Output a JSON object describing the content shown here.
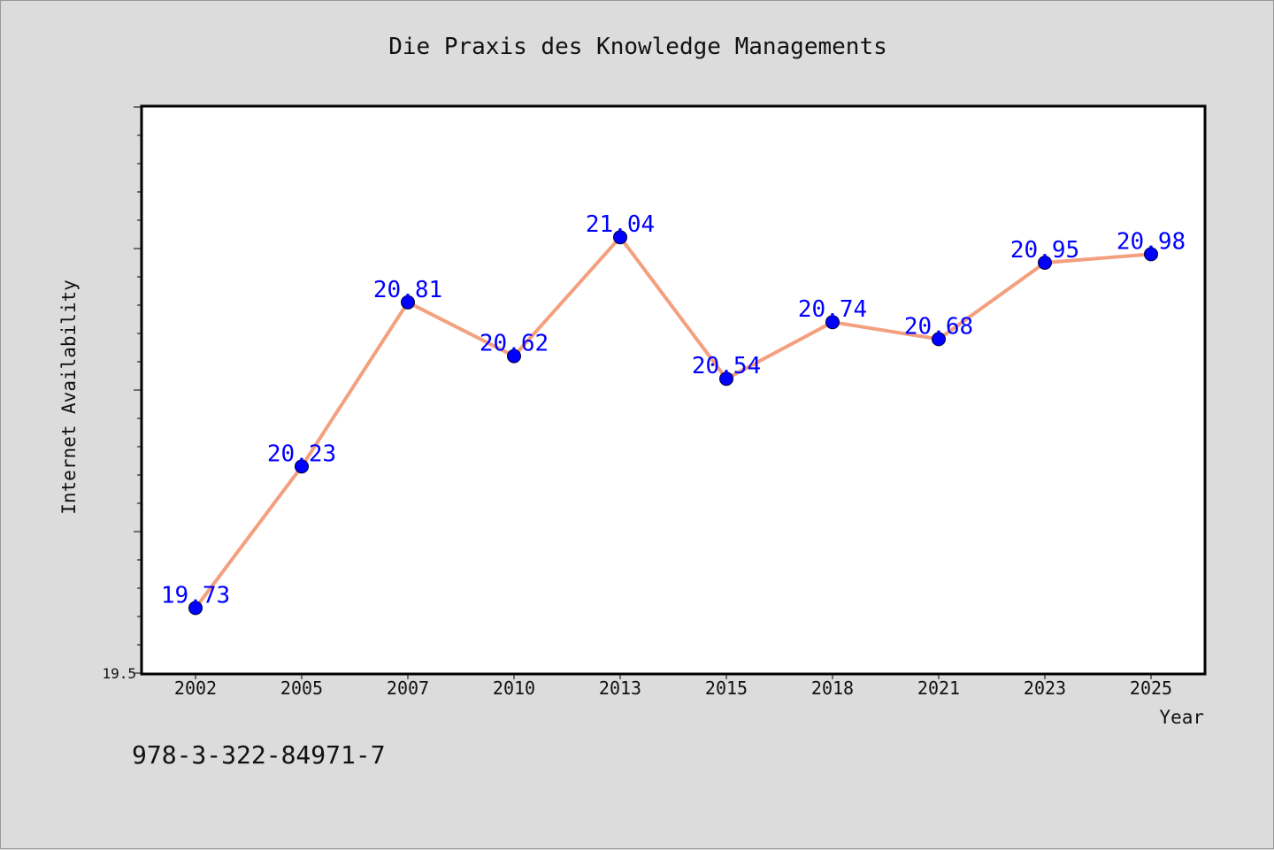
{
  "chart_data": {
    "type": "line",
    "title": "Die Praxis des Knowledge Managements",
    "xlabel": "Year",
    "ylabel": "Internet Availability",
    "categories": [
      "2002",
      "2005",
      "2007",
      "2010",
      "2013",
      "2015",
      "2018",
      "2021",
      "2023",
      "2025"
    ],
    "series": [
      {
        "values": [
          19.73,
          20.23,
          20.81,
          20.62,
          21.04,
          20.54,
          20.74,
          20.68,
          20.95,
          20.98
        ]
      }
    ],
    "data_labels": [
      "19.73",
      "20.23",
      "20.81",
      "20.62",
      "21.04",
      "20.54",
      "20.74",
      "20.68",
      "20.95",
      "20.98"
    ],
    "ylim": [
      19.5,
      21.5
    ],
    "ytick_labels": [
      "19.5"
    ],
    "grid": false,
    "line_color": "#f4a07f",
    "marker_color": "#0000ff",
    "label_color": "#0000ff",
    "plot_background": "#ffffff",
    "figure_background": "#dcdcdc"
  },
  "footer": {
    "isbn": "978-3-322-84971-7"
  }
}
